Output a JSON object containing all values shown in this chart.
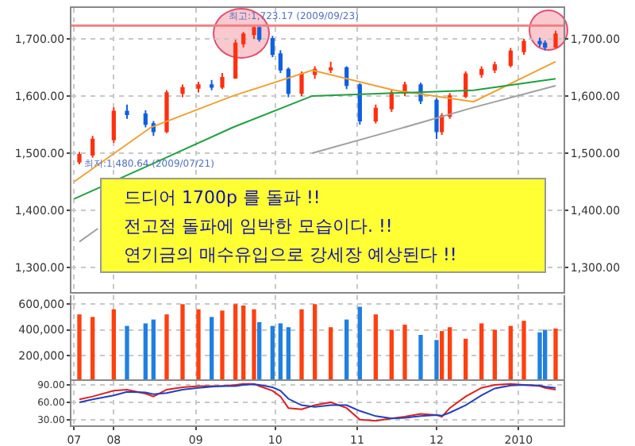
{
  "chart_data": [
    {
      "type": "candlestick",
      "x": [
        "2009-07-19",
        "2009-07-24",
        "2009-08-01",
        "2009-08-06",
        "2009-08-13",
        "2009-08-16",
        "2009-08-21",
        "2009-08-27",
        "2009-09-02",
        "2009-09-07",
        "2009-09-11",
        "2009-09-16",
        "2009-09-19",
        "2009-09-23",
        "2009-09-25",
        "2009-09-30",
        "2009-10-03",
        "2009-10-06",
        "2009-10-11",
        "2009-10-16",
        "2009-10-22",
        "2009-10-28",
        "2009-11-02",
        "2009-11-08",
        "2009-11-14",
        "2009-11-19",
        "2009-11-25",
        "2009-12-01",
        "2009-12-03",
        "2009-12-06",
        "2009-12-12",
        "2009-12-18",
        "2009-12-23",
        "2009-12-29",
        "2010-01-03",
        "2010-01-09",
        "2010-01-11",
        "2010-01-15"
      ],
      "ohlc": [
        [
          1485,
          1502,
          1480.64,
          1497
        ],
        [
          1497,
          1530,
          1492,
          1524
        ],
        [
          1524,
          1580,
          1518,
          1573
        ],
        [
          1573,
          1585,
          1560,
          1568
        ],
        [
          1568,
          1575,
          1545,
          1551
        ],
        [
          1551,
          1556,
          1530,
          1538
        ],
        [
          1538,
          1610,
          1535,
          1605
        ],
        [
          1605,
          1620,
          1598,
          1614
        ],
        [
          1614,
          1625,
          1606,
          1619
        ],
        [
          1619,
          1628,
          1610,
          1616
        ],
        [
          1616,
          1640,
          1612,
          1632
        ],
        [
          1632,
          1698,
          1630,
          1692
        ],
        [
          1692,
          1712,
          1685,
          1708
        ],
        [
          1708,
          1723.17,
          1700,
          1719
        ],
        [
          1719,
          1722,
          1695,
          1700
        ],
        [
          1700,
          1705,
          1668,
          1673
        ],
        [
          1673,
          1680,
          1640,
          1646
        ],
        [
          1646,
          1650,
          1598,
          1605
        ],
        [
          1605,
          1643,
          1600,
          1638
        ],
        [
          1638,
          1652,
          1630,
          1646
        ],
        [
          1646,
          1660,
          1640,
          1649
        ],
        [
          1649,
          1652,
          1612,
          1619
        ],
        [
          1619,
          1622,
          1550,
          1557
        ],
        [
          1557,
          1585,
          1552,
          1578
        ],
        [
          1578,
          1610,
          1572,
          1605
        ],
        [
          1605,
          1625,
          1600,
          1619
        ],
        [
          1619,
          1623,
          1586,
          1592
        ],
        [
          1592,
          1596,
          1525,
          1538
        ],
        [
          1538,
          1570,
          1532,
          1565
        ],
        [
          1565,
          1605,
          1560,
          1600
        ],
        [
          1600,
          1643,
          1596,
          1638
        ],
        [
          1638,
          1652,
          1632,
          1646
        ],
        [
          1646,
          1660,
          1640,
          1654
        ],
        [
          1654,
          1684,
          1650,
          1678
        ],
        [
          1678,
          1700,
          1672,
          1695
        ],
        [
          1695,
          1702,
          1686,
          1692
        ],
        [
          1692,
          1697,
          1680,
          1686
        ],
        [
          1686,
          1714,
          1684,
          1708
        ]
      ],
      "series": [
        {
          "type": "line",
          "color": "#f0a030",
          "x": [
            "2009-07-17",
            "2009-08-15",
            "2009-09-15",
            "2009-10-15",
            "2009-11-15",
            "2009-12-15",
            "2010-01-15"
          ],
          "values": [
            1450,
            1545,
            1600,
            1645,
            1610,
            1590,
            1660
          ]
        },
        {
          "type": "line",
          "color": "#20a040",
          "x": [
            "2009-07-17",
            "2009-08-15",
            "2009-09-15",
            "2009-10-15",
            "2009-11-15",
            "2009-12-15",
            "2010-01-15"
          ],
          "values": [
            1420,
            1480,
            1545,
            1600,
            1605,
            1610,
            1630
          ]
        },
        {
          "type": "line",
          "color": "#a0a0a0",
          "x": [
            "2009-07-19",
            "2009-07-26",
            "2009-09-15",
            "2009-10-15",
            "2009-11-15",
            "2009-12-15",
            "2010-01-15"
          ],
          "values": [
            1345,
            1368,
            null,
            1500,
            1540,
            1580,
            1618
          ]
        }
      ],
      "xlim": [
        "2009-07-16",
        "2010-01-18"
      ],
      "xticks": [
        {
          "value": "2009-07-17",
          "label": null
        },
        {
          "value": "2009-08-01",
          "label": null
        },
        {
          "value": "2009-09-01",
          "label": null
        },
        {
          "value": "2009-10-01",
          "label": null
        },
        {
          "value": "2009-11-01",
          "label": null
        },
        {
          "value": "2009-12-01",
          "label": null
        },
        {
          "value": "2010-01-01",
          "label": null
        }
      ],
      "ylim": [
        1257,
        1754
      ],
      "yticks": [
        {
          "value": 1300,
          "label": "1,300.00"
        },
        {
          "value": 1400,
          "label": "1,400.00"
        },
        {
          "value": 1500,
          "label": "1,500.00"
        },
        {
          "value": 1600,
          "label": "1,600.00"
        },
        {
          "value": 1700,
          "label": "1,700.00"
        }
      ],
      "y2lim": [
        1257,
        1754
      ],
      "y2ticks": [
        {
          "value": 1300,
          "label": "1,300.00"
        },
        {
          "value": 1400,
          "label": "1,400.00"
        },
        {
          "value": 1500,
          "label": "1,500.00"
        },
        {
          "value": 1600,
          "label": "1,600.00"
        },
        {
          "value": 1700,
          "label": "1,700.00"
        }
      ],
      "ref_lines": [
        {
          "axis": "y",
          "value": 1723.17,
          "color": "#f08080"
        }
      ],
      "annotations": [
        {
          "text": "최고:1,723.17 (2009/09/23)",
          "x": "2009-10-08",
          "y": 1723.17
        },
        "최저:1,480.64 (2009/07/21)",
        "드디어 1700p 를 돌파 !!",
        "전고점 돌파에 임박한 모습이다. !!",
        "연기금의 매수유입으로 강세장 예상된다 !!"
      ],
      "grid": true,
      "tick_labels": "y"
    },
    {
      "type": "bar",
      "x": [
        "2009-07-19",
        "2009-07-24",
        "2009-08-01",
        "2009-08-06",
        "2009-08-13",
        "2009-08-16",
        "2009-08-21",
        "2009-08-27",
        "2009-09-02",
        "2009-09-07",
        "2009-09-11",
        "2009-09-16",
        "2009-09-19",
        "2009-09-23",
        "2009-09-25",
        "2009-09-30",
        "2009-10-03",
        "2009-10-06",
        "2009-10-11",
        "2009-10-16",
        "2009-10-22",
        "2009-10-28",
        "2009-11-02",
        "2009-11-08",
        "2009-11-14",
        "2009-11-19",
        "2009-11-25",
        "2009-12-01",
        "2009-12-03",
        "2009-12-06",
        "2009-12-12",
        "2009-12-18",
        "2009-12-23",
        "2009-12-29",
        "2010-01-03",
        "2010-01-09",
        "2010-01-11",
        "2010-01-15"
      ],
      "values": [
        520000,
        500000,
        560000,
        430000,
        450000,
        480000,
        520000,
        600000,
        560000,
        500000,
        550000,
        600000,
        590000,
        560000,
        460000,
        430000,
        450000,
        420000,
        560000,
        600000,
        420000,
        480000,
        580000,
        520000,
        400000,
        440000,
        360000,
        320000,
        390000,
        420000,
        330000,
        450000,
        400000,
        430000,
        470000,
        380000,
        400000,
        410000
      ],
      "colors": [
        "#ff4010",
        "#ff4010",
        "#ff4010",
        "#2080e0",
        "#2080e0",
        "#2080e0",
        "#ff4010",
        "#ff4010",
        "#ff4010",
        "#2080e0",
        "#ff4010",
        "#ff4010",
        "#ff4010",
        "#ff4010",
        "#2080e0",
        "#2080e0",
        "#2080e0",
        "#2080e0",
        "#ff4010",
        "#ff4010",
        "#ff4010",
        "#2080e0",
        "#2080e0",
        "#ff4010",
        "#ff4010",
        "#ff4010",
        "#2080e0",
        "#2080e0",
        "#ff4010",
        "#ff4010",
        "#ff4010",
        "#ff4010",
        "#ff4010",
        "#ff4010",
        "#ff4010",
        "#2080e0",
        "#2080e0",
        "#ff4010"
      ],
      "xlim": [
        "2009-07-16",
        "2010-01-18"
      ],
      "xticks": [
        {
          "value": "2009-07-17",
          "label": null
        },
        {
          "value": "2009-08-01",
          "label": null
        },
        {
          "value": "2009-09-01",
          "label": null
        },
        {
          "value": "2009-10-01",
          "label": null
        },
        {
          "value": "2009-11-01",
          "label": null
        },
        {
          "value": "2009-12-01",
          "label": null
        },
        {
          "value": "2010-01-01",
          "label": null
        }
      ],
      "ylim": [
        0,
        670000
      ],
      "yticks": [
        {
          "value": 200000,
          "label": "200,000"
        },
        {
          "value": 400000,
          "label": "400,000"
        },
        {
          "value": 600000,
          "label": "600,000"
        }
      ],
      "grid": true,
      "tick_labels": "y"
    },
    {
      "type": "line",
      "x": [
        "2009-07-19",
        "2009-07-24",
        "2009-08-01",
        "2009-08-06",
        "2009-08-13",
        "2009-08-16",
        "2009-08-21",
        "2009-08-27",
        "2009-09-02",
        "2009-09-07",
        "2009-09-11",
        "2009-09-16",
        "2009-09-19",
        "2009-09-23",
        "2009-09-25",
        "2009-09-30",
        "2009-10-03",
        "2009-10-06",
        "2009-10-11",
        "2009-10-16",
        "2009-10-22",
        "2009-10-28",
        "2009-11-02",
        "2009-11-08",
        "2009-11-14",
        "2009-11-19",
        "2009-11-25",
        "2009-12-01",
        "2009-12-03",
        "2009-12-06",
        "2009-12-12",
        "2009-12-18",
        "2009-12-23",
        "2009-12-29",
        "2010-01-03",
        "2010-01-09",
        "2010-01-11",
        "2010-01-15"
      ],
      "series": [
        {
          "color": "#e02020",
          "values": [
            65,
            70,
            80,
            82,
            75,
            70,
            82,
            86,
            88,
            88,
            88,
            90,
            92,
            92,
            88,
            80,
            70,
            50,
            48,
            55,
            60,
            50,
            30,
            28,
            32,
            35,
            40,
            38,
            35,
            50,
            70,
            85,
            90,
            92,
            90,
            88,
            85,
            82
          ]
        },
        {
          "color": "#2040c0",
          "values": [
            60,
            65,
            72,
            78,
            77,
            74,
            76,
            82,
            85,
            87,
            88,
            88,
            90,
            91,
            90,
            86,
            80,
            66,
            55,
            52,
            55,
            55,
            45,
            36,
            32,
            33,
            36,
            38,
            37,
            42,
            55,
            72,
            84,
            89,
            90,
            89,
            87,
            85
          ]
        }
      ],
      "xlim": [
        "2009-07-16",
        "2010-01-18"
      ],
      "xticks": [
        {
          "value": "2009-07-17",
          "label": "07"
        },
        {
          "value": "2009-08-01",
          "label": "08"
        },
        {
          "value": "2009-09-01",
          "label": "09"
        },
        {
          "value": "2009-10-01",
          "label": "10"
        },
        {
          "value": "2009-11-01",
          "label": "11"
        },
        {
          "value": "2009-12-01",
          "label": "12"
        },
        {
          "value": "2010-01-01",
          "label": "2010"
        }
      ],
      "ylim": [
        20,
        97
      ],
      "yticks": [
        {
          "value": 30,
          "label": "30.00"
        },
        {
          "value": 60,
          "label": "60.00"
        },
        {
          "value": 90,
          "label": "90.00"
        }
      ],
      "grid": true
    }
  ]
}
